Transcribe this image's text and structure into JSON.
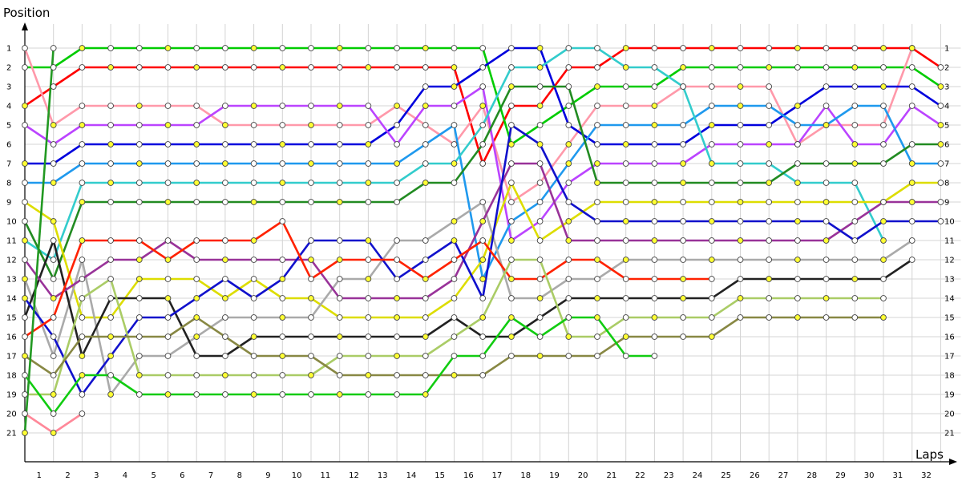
{
  "chart_data": {
    "type": "line",
    "xlabel": "Laps",
    "ylabel": "Position",
    "x_ticks": [
      "1",
      "2",
      "3",
      "4",
      "5",
      "6",
      "7",
      "8",
      "9",
      "10",
      "11",
      "12",
      "13",
      "14",
      "15",
      "16",
      "17",
      "18",
      "19",
      "20",
      "21",
      "22",
      "23",
      "24",
      "25",
      "26",
      "27",
      "28",
      "29",
      "30",
      "31",
      "32"
    ],
    "y_ticks": [
      "1",
      "2",
      "3",
      "4",
      "5",
      "6",
      "7",
      "8",
      "9",
      "10",
      "11",
      "12",
      "13",
      "14",
      "15",
      "16",
      "17",
      "18",
      "19",
      "20",
      "21"
    ],
    "x_range": [
      0,
      32.7
    ],
    "y_range": [
      1,
      21
    ],
    "grid": true,
    "y_direction": "inverted",
    "series": [
      {
        "color": "#ff0000",
        "values": [
          4,
          3,
          2,
          2,
          2,
          2,
          2,
          2,
          2,
          2,
          2,
          2,
          2,
          2,
          2,
          2,
          7,
          4,
          4,
          2,
          2,
          1,
          1,
          1,
          1,
          1,
          1,
          1,
          1,
          1,
          1,
          1,
          2
        ]
      },
      {
        "color": "#00cc00",
        "values": [
          2,
          2,
          1,
          1,
          1,
          1,
          1,
          1,
          1,
          1,
          1,
          1,
          1,
          1,
          1,
          1,
          1,
          6,
          5,
          4,
          3,
          3,
          3,
          2,
          2,
          2,
          2,
          2,
          2,
          2,
          2,
          2,
          3
        ]
      },
      {
        "color": "#ff99aa",
        "values": [
          1,
          5,
          4,
          4,
          4,
          4,
          4,
          5,
          5,
          5,
          5,
          5,
          5,
          4,
          5,
          6,
          4,
          9,
          8,
          6,
          4,
          4,
          4,
          3,
          3,
          3,
          3,
          6,
          5,
          5,
          5,
          1,
          null
        ]
      },
      {
        "color": "#0000dd",
        "values": [
          7,
          7,
          6,
          6,
          6,
          6,
          6,
          6,
          6,
          6,
          6,
          6,
          6,
          5,
          3,
          3,
          2,
          1,
          1,
          5,
          6,
          6,
          6,
          6,
          5,
          5,
          5,
          4,
          3,
          3,
          3,
          3,
          4
        ]
      },
      {
        "color": "#bb44ff",
        "values": [
          5,
          6,
          5,
          5,
          5,
          5,
          5,
          4,
          4,
          4,
          4,
          4,
          4,
          6,
          4,
          4,
          3,
          11,
          10,
          8,
          7,
          7,
          7,
          7,
          6,
          6,
          6,
          6,
          4,
          6,
          6,
          4,
          5
        ]
      },
      {
        "color": "#1f99ee",
        "values": [
          8,
          8,
          7,
          7,
          7,
          7,
          7,
          7,
          7,
          7,
          7,
          7,
          7,
          7,
          6,
          5,
          13,
          10,
          9,
          7,
          5,
          5,
          5,
          5,
          4,
          4,
          4,
          5,
          5,
          4,
          4,
          7,
          7
        ]
      },
      {
        "color": "#33cccc",
        "values": [
          11,
          12,
          8,
          8,
          8,
          8,
          8,
          8,
          8,
          8,
          8,
          8,
          8,
          8,
          7,
          7,
          5,
          2,
          2,
          1,
          1,
          2,
          2,
          3,
          7,
          7,
          7,
          8,
          8,
          8,
          11,
          null,
          null
        ]
      },
      {
        "color": "#228b22",
        "values": [
          10,
          13,
          9,
          9,
          9,
          9,
          9,
          9,
          9,
          9,
          9,
          9,
          9,
          9,
          8,
          8,
          6,
          3,
          3,
          3,
          8,
          8,
          8,
          8,
          8,
          8,
          8,
          7,
          7,
          7,
          7,
          6,
          6
        ]
      },
      {
        "color": "#dddd00",
        "values": [
          9,
          10,
          15,
          15,
          13,
          13,
          13,
          14,
          13,
          14,
          14,
          15,
          15,
          15,
          15,
          14,
          12,
          8,
          11,
          10,
          9,
          9,
          9,
          9,
          9,
          9,
          9,
          9,
          9,
          9,
          9,
          8,
          8
        ]
      },
      {
        "color": "#aaaaaa",
        "values": [
          13,
          17,
          12,
          19,
          17,
          17,
          16,
          15,
          15,
          15,
          15,
          13,
          13,
          11,
          11,
          10,
          9,
          14,
          14,
          13,
          13,
          12,
          12,
          12,
          12,
          12,
          12,
          12,
          12,
          12,
          12,
          11,
          null
        ]
      },
      {
        "color": "#222222",
        "values": [
          15,
          11,
          17,
          14,
          14,
          14,
          17,
          17,
          16,
          16,
          16,
          16,
          16,
          16,
          16,
          15,
          16,
          16,
          15,
          14,
          14,
          14,
          14,
          14,
          14,
          13,
          13,
          13,
          13,
          13,
          13,
          12,
          null
        ]
      },
      {
        "color": "#993399",
        "values": [
          12,
          14,
          13,
          12,
          12,
          11,
          12,
          12,
          12,
          12,
          12,
          14,
          14,
          14,
          14,
          13,
          10,
          7,
          7,
          11,
          11,
          11,
          11,
          11,
          11,
          11,
          11,
          11,
          11,
          10,
          9,
          9,
          9
        ]
      },
      {
        "color": "#1111cc",
        "values": [
          14,
          16,
          19,
          17,
          15,
          15,
          14,
          13,
          14,
          13,
          11,
          11,
          11,
          13,
          12,
          11,
          14,
          5,
          6,
          9,
          10,
          10,
          10,
          10,
          10,
          10,
          10,
          10,
          10,
          11,
          10,
          10,
          10
        ]
      },
      {
        "color": "#ff2200",
        "values": [
          16,
          15,
          11,
          11,
          11,
          12,
          11,
          11,
          11,
          10,
          13,
          12,
          12,
          12,
          13,
          12,
          11,
          13,
          13,
          12,
          12,
          13,
          13,
          13,
          13,
          null,
          null,
          null,
          null,
          null,
          null,
          null,
          null
        ]
      },
      {
        "color": "#aacc66",
        "values": [
          19,
          19,
          14,
          13,
          18,
          18,
          18,
          18,
          18,
          18,
          18,
          17,
          17,
          17,
          17,
          16,
          15,
          12,
          12,
          16,
          16,
          15,
          15,
          15,
          15,
          14,
          14,
          14,
          14,
          14,
          14,
          null,
          null
        ]
      },
      {
        "color": "#888844",
        "values": [
          17,
          18,
          16,
          16,
          16,
          16,
          15,
          16,
          17,
          17,
          17,
          18,
          18,
          18,
          18,
          18,
          18,
          17,
          17,
          17,
          17,
          16,
          16,
          16,
          16,
          15,
          15,
          15,
          15,
          15,
          15,
          null,
          null
        ]
      },
      {
        "color": "#11cc11",
        "values": [
          18,
          20,
          18,
          18,
          19,
          19,
          19,
          19,
          19,
          19,
          19,
          19,
          19,
          19,
          19,
          17,
          17,
          15,
          16,
          15,
          15,
          17,
          17,
          null,
          null,
          null,
          null,
          null,
          null,
          null,
          null,
          null,
          null
        ]
      },
      {
        "color": "#ff8899",
        "values": [
          20,
          21,
          20,
          null,
          null,
          null,
          null,
          null,
          null,
          null,
          null,
          null,
          null,
          null,
          null,
          null,
          null,
          null,
          null,
          null,
          null,
          null,
          null,
          null,
          null,
          null,
          null,
          null,
          null,
          null,
          null,
          null,
          null
        ]
      },
      {
        "color": "#229922",
        "values": [
          21,
          1,
          null,
          null,
          null,
          null,
          null,
          null,
          null,
          null,
          null,
          null,
          null,
          null,
          null,
          null,
          null,
          null,
          null,
          null,
          null,
          null,
          null,
          null,
          null,
          null,
          null,
          null,
          null,
          null,
          null,
          null,
          null
        ]
      }
    ]
  }
}
